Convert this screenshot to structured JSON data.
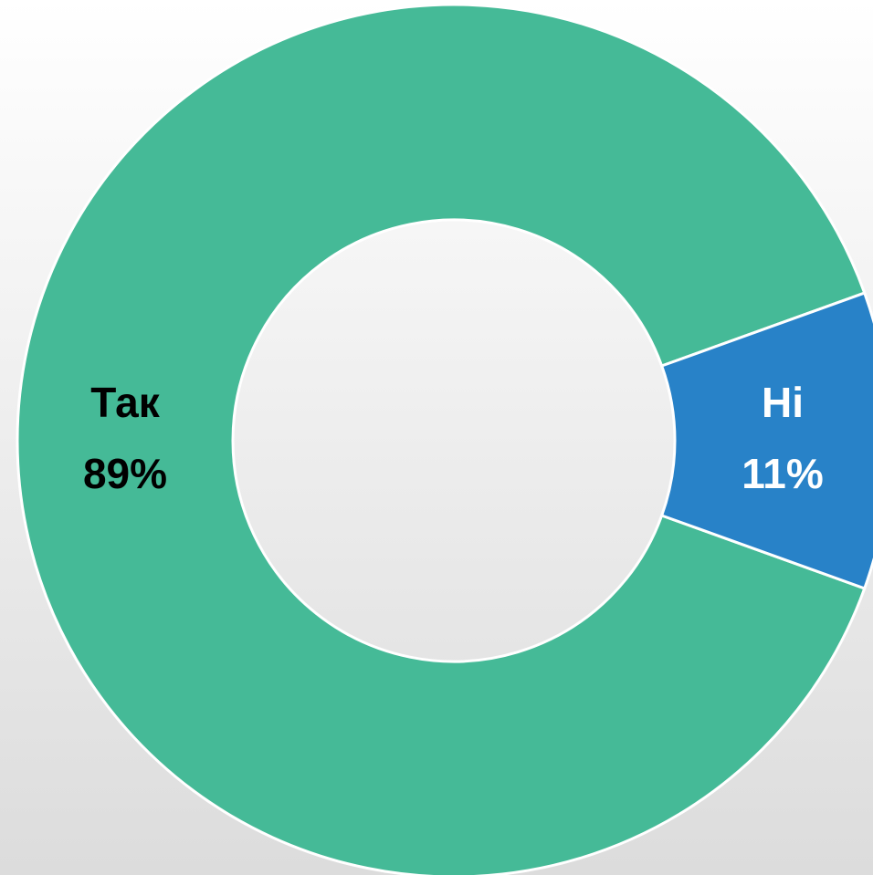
{
  "chart_data": {
    "type": "donut",
    "categories": [
      "Так",
      "Ні"
    ],
    "values": [
      89,
      11
    ],
    "value_labels": [
      "89%",
      "11%"
    ],
    "colors": [
      "#45ba97",
      "#2882c8"
    ],
    "label_colors": [
      "#000000",
      "#ffffff"
    ]
  }
}
